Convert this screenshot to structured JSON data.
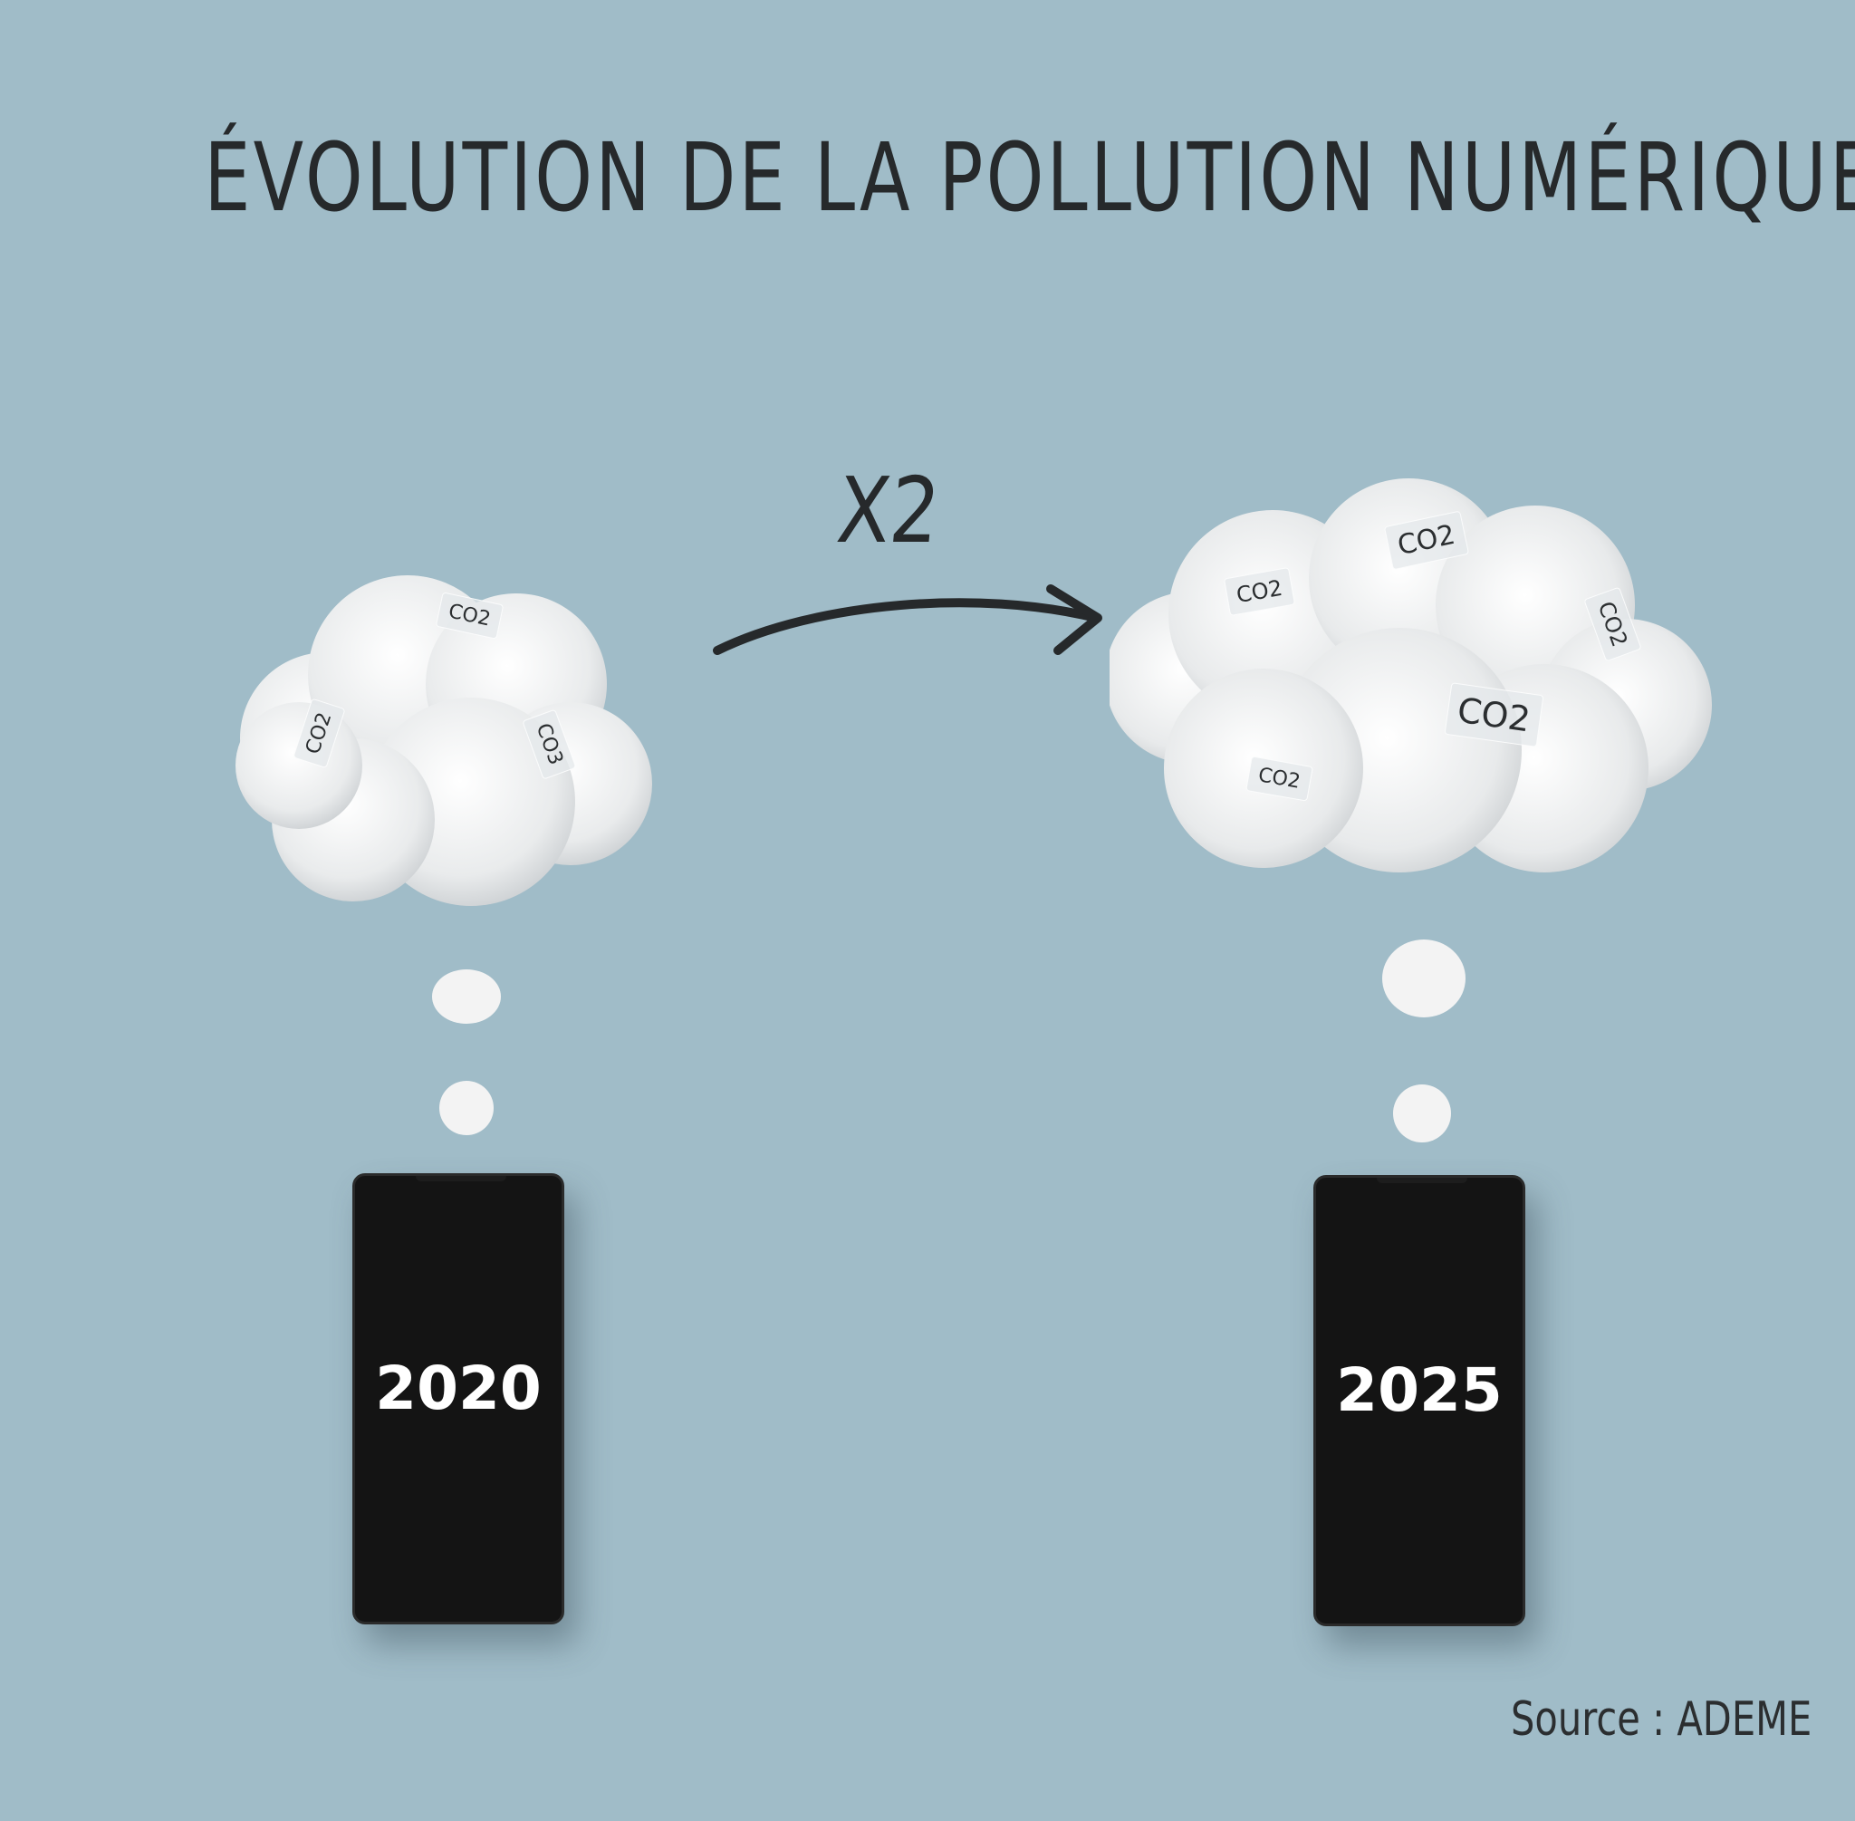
{
  "title": "ÉVOLUTION DE LA POLLUTION NUMÉRIQUE",
  "multiplier": "X2",
  "cloud_left": {
    "labels": [
      "CO2",
      "CO2",
      "CO3"
    ]
  },
  "cloud_right": {
    "labels": [
      "CO2",
      "CO2",
      "CO2",
      "CO2",
      "CO2"
    ]
  },
  "phone_left": {
    "year": "2020"
  },
  "phone_right": {
    "year": "2025"
  },
  "source": "Source : ADEME",
  "icons": [
    "cloud-icon",
    "arrow-icon",
    "smartphone-icon"
  ],
  "colors": {
    "background": "#a0bcc8",
    "ink": "#26292b",
    "phone": "#141414",
    "cloud": "#f2f2f2"
  }
}
